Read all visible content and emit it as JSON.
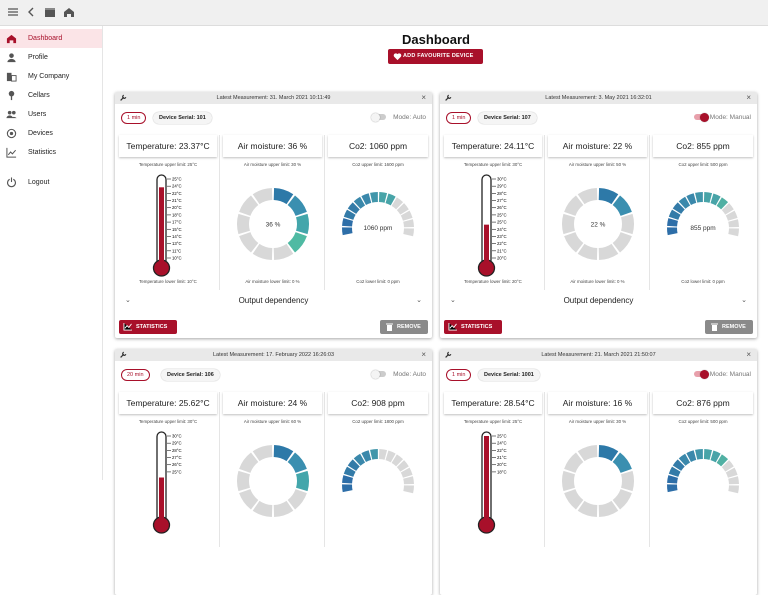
{
  "app": {
    "page_title": "Dashboard",
    "favourite_label": "ADD FAVOURITE DEVICE",
    "accent": "#a8102a"
  },
  "topbar": {
    "icons": [
      "menu-icon",
      "back-icon",
      "folder-icon",
      "home-icon"
    ]
  },
  "sidebar": {
    "items": [
      {
        "label": "Dashboard",
        "icon": "home-icon",
        "active": true
      },
      {
        "label": "Profile",
        "icon": "person-icon"
      },
      {
        "label": "My Company",
        "icon": "company-icon"
      },
      {
        "label": "Cellars",
        "icon": "cellar-icon"
      },
      {
        "label": "Users",
        "icon": "users-icon"
      },
      {
        "label": "Devices",
        "icon": "devices-icon"
      },
      {
        "label": "Statistics",
        "icon": "statistics-icon"
      },
      {
        "label": "Logout",
        "icon": "logout-icon"
      }
    ]
  },
  "cards": [
    {
      "latest": "Latest Measurement: 31. March 2021 10:11:49",
      "interval": "1 min",
      "serial": "Device Serial: 101",
      "mode": "Mode: Auto",
      "mode_on": false,
      "temp": {
        "title": "Temperature: 23.37°C",
        "upper": "Temperature upper limit: 25°C",
        "lower": "Temperature lower limit: 10°C",
        "ticks": [
          "25°C",
          "24°C",
          "22°C",
          "21°C",
          "20°C",
          "18°C",
          "17°C",
          "15°C",
          "14°C",
          "13°C",
          "11°C",
          "10°C"
        ],
        "fill": 0.9
      },
      "moist": {
        "title": "Air moisture: 36 %",
        "upper": "Air moisture upper limit: 30 %",
        "lower": "Air moisture lower limit: 0 %",
        "value_label": "36 %",
        "value": 36
      },
      "co2": {
        "title": "Co2: 1060 ppm",
        "upper": "Co2 upper limit: 1600 ppm",
        "lower": "Co2 lower limit: 0 ppm",
        "value_label": "1060 ppm",
        "value": 1060,
        "max": 1600
      },
      "output": "Output dependency",
      "stats_label": "STATISTICS",
      "remove_label": "REMOVE"
    },
    {
      "latest": "Latest Measurement: 3. May 2021 16:32:01",
      "interval": "1 min",
      "serial": "Device Serial: 107",
      "mode": "Mode: Manual",
      "mode_on": true,
      "temp": {
        "title": "Temperature: 24.11°C",
        "upper": "Temperature upper limit: 30°C",
        "lower": "Temperature lower limit: 20°C",
        "ticks": [
          "30°C",
          "29°C",
          "28°C",
          "27°C",
          "26°C",
          "25°C",
          "25°C",
          "24°C",
          "23°C",
          "22°C",
          "21°C",
          "20°C"
        ],
        "fill": 0.45
      },
      "moist": {
        "title": "Air moisture: 22 %",
        "upper": "Air moisture upper limit: 50 %",
        "lower": "Air moisture lower limit: 0 %",
        "value_label": "22 %",
        "value": 22
      },
      "co2": {
        "title": "Co2: 855 ppm",
        "upper": "Co2 upper limit: 500 ppm",
        "lower": "Co2 lower limit: 0 ppm",
        "value_label": "855 ppm",
        "value": 855,
        "max": 1200
      },
      "output": "Output dependency",
      "stats_label": "STATISTICS",
      "remove_label": "REMOVE"
    },
    {
      "latest": "Latest Measurement: 17. February 2022 16:26:03",
      "interval": "20 min",
      "serial": "Device Serial: 106",
      "mode": "Mode: Auto",
      "mode_on": false,
      "temp": {
        "title": "Temperature: 25.62°C",
        "upper": "Temperature upper limit: 30°C",
        "lower": "",
        "ticks": [
          "30°C",
          "29°C",
          "28°C",
          "27°C",
          "26°C",
          "25°C"
        ],
        "fill": 0.5
      },
      "moist": {
        "title": "Air moisture: 24 %",
        "upper": "Air moisture upper limit: 60 %",
        "lower": "",
        "value_label": "",
        "value": 24
      },
      "co2": {
        "title": "Co2: 908 ppm",
        "upper": "Co2 upper limit: 1800 ppm",
        "lower": "",
        "value_label": "",
        "value": 908,
        "max": 1800
      },
      "output": "",
      "stats_label": "",
      "remove_label": ""
    },
    {
      "latest": "Latest Measurement: 21. March 2021 21:50:07",
      "interval": "1 min",
      "serial": "Device Serial: 1001",
      "mode": "Mode: Manual",
      "mode_on": true,
      "temp": {
        "title": "Temperature: 28.54°C",
        "upper": "Temperature upper limit: 25°C",
        "lower": "",
        "ticks": [
          "25°C",
          "24°C",
          "22°C",
          "21°C",
          "20°C",
          "18°C"
        ],
        "fill": 1.0
      },
      "moist": {
        "title": "Air moisture: 16 %",
        "upper": "Air moisture upper limit: 30 %",
        "lower": "",
        "value_label": "",
        "value": 16
      },
      "co2": {
        "title": "Co2: 876 ppm",
        "upper": "Co2 upper limit: 500 ppm",
        "lower": "",
        "value_label": "",
        "value": 876,
        "max": 1200
      },
      "output": "",
      "stats_label": "",
      "remove_label": ""
    }
  ]
}
